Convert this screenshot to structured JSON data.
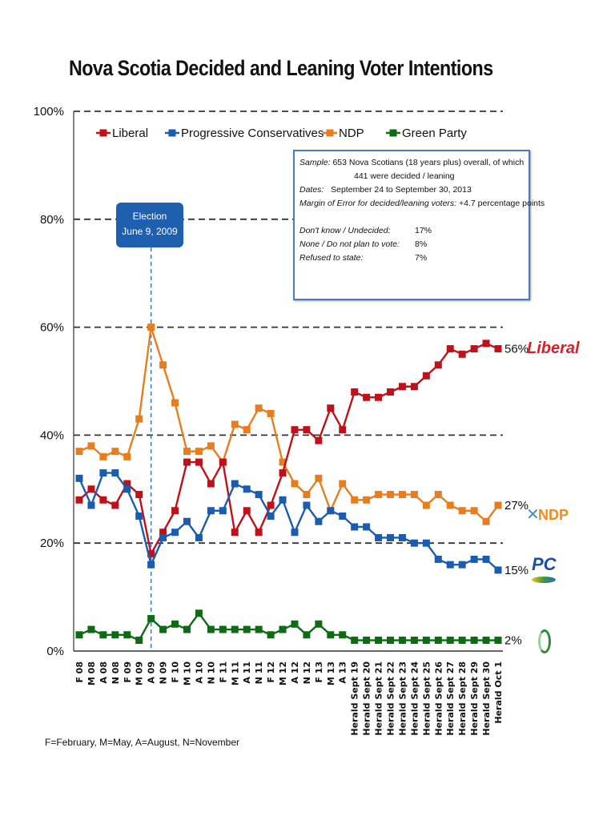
{
  "title": "Nova Scotia Decided and Leaning Voter Intentions",
  "footnote": "F=February, M=May, A=August, N=November",
  "election_callout": {
    "line1": "Election",
    "line2": "June 9, 2009",
    "category": "A 09"
  },
  "info_box": {
    "sample_label": "Sample:",
    "sample_text": "653 Nova Scotians (18 years plus) overall, of which",
    "sample_text2": "441 were decided / leaning",
    "dates_label": "Dates:",
    "dates_text": "September 24 to September 30, 2013",
    "moe_label": "Margin of Error for decided/leaning voters:",
    "moe_text": "+4.7 percentage points",
    "stats": [
      {
        "label": "Don't know / Undecided:",
        "value": "17%"
      },
      {
        "label": "None / Do not plan to vote:",
        "value": "8%"
      },
      {
        "label": "Refused to state:",
        "value": "7%"
      }
    ]
  },
  "logos": {
    "liberal": "Liberal",
    "ndp": "NDP",
    "pc": "PC"
  },
  "chart_data": {
    "type": "line",
    "title": "Nova Scotia Decided and Leaning Voter Intentions",
    "xlabel": "",
    "ylabel": "",
    "ylim": [
      0,
      100
    ],
    "yticks": [
      "0%",
      "20%",
      "40%",
      "60%",
      "80%",
      "100%"
    ],
    "grid": "horizontal dashed at 20% intervals",
    "legend_position": "top-left",
    "categories": [
      "F 08",
      "M 08",
      "A 08",
      "N 08",
      "F 09",
      "M 09",
      "A 09",
      "N 09",
      "F 10",
      "M 10",
      "A 10",
      "N 10",
      "F 11",
      "M 11",
      "A 11",
      "N 11",
      "F 12",
      "M 12",
      "A 12",
      "N 12",
      "F 13",
      "M 13",
      "A 13",
      "Herald Sept 19",
      "Herald Sept 20",
      "Herald Sept 21",
      "Herald Sept 22",
      "Herald Sept 23",
      "Herald Sept 24",
      "Herald Sept 25",
      "Herald Sept 26",
      "Herald Sept 27",
      "Herald Sept 28",
      "Herald Sept 29",
      "Herald Sept 30",
      "Herald Oct 1"
    ],
    "series": [
      {
        "name": "Liberal",
        "color": "#c0101a",
        "end_label": "56%",
        "values": [
          28,
          30,
          28,
          27,
          31,
          29,
          18,
          22,
          26,
          35,
          35,
          31,
          35,
          22,
          26,
          22,
          27,
          33,
          41,
          41,
          39,
          45,
          41,
          48,
          47,
          47,
          48,
          49,
          49,
          51,
          53,
          56,
          55,
          56,
          57,
          56
        ]
      },
      {
        "name": "Progressive Conservatives",
        "color": "#1a5cb0",
        "end_label": "15%",
        "values": [
          32,
          27,
          33,
          33,
          30,
          25,
          16,
          21,
          22,
          24,
          21,
          26,
          26,
          31,
          30,
          29,
          25,
          28,
          22,
          27,
          24,
          26,
          25,
          23,
          23,
          21,
          21,
          21,
          20,
          20,
          17,
          16,
          16,
          17,
          17,
          15
        ]
      },
      {
        "name": "NDP",
        "color": "#e87d1e",
        "end_label": "27%",
        "values": [
          37,
          38,
          36,
          37,
          36,
          43,
          60,
          53,
          46,
          37,
          37,
          38,
          35,
          42,
          41,
          45,
          44,
          35,
          31,
          29,
          32,
          26,
          31,
          28,
          28,
          29,
          29,
          29,
          29,
          27,
          29,
          27,
          26,
          26,
          24,
          27
        ]
      },
      {
        "name": "Green Party",
        "color": "#0d6b14",
        "end_label": "2%",
        "values": [
          3,
          4,
          3,
          3,
          3,
          2,
          6,
          4,
          5,
          4,
          7,
          4,
          4,
          4,
          4,
          4,
          3,
          4,
          5,
          3,
          5,
          3,
          3,
          2,
          2,
          2,
          2,
          2,
          2,
          2,
          2,
          2,
          2,
          2,
          2,
          2
        ]
      }
    ]
  }
}
